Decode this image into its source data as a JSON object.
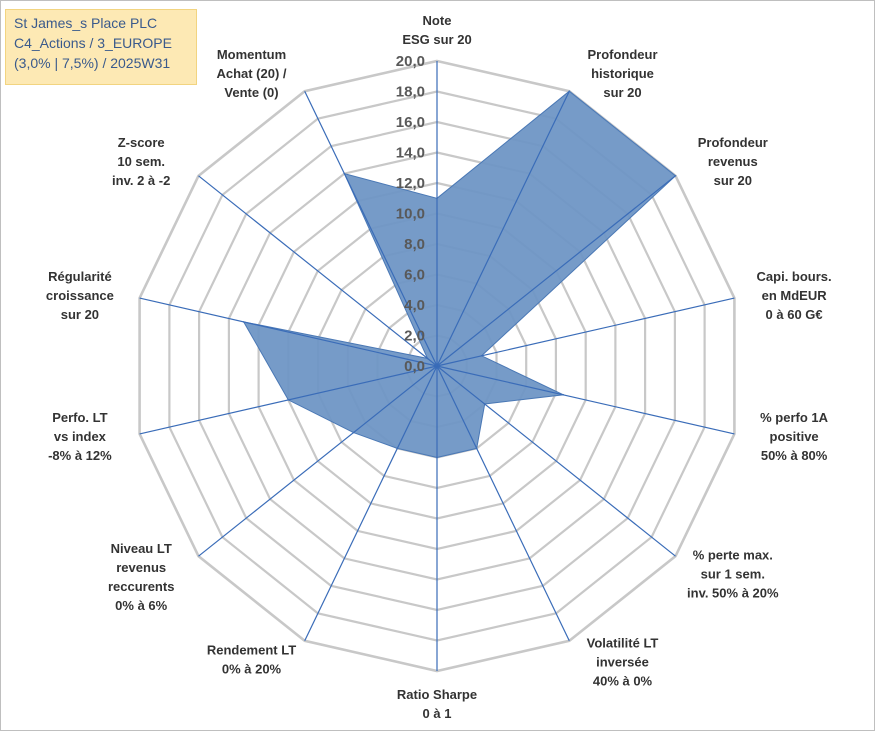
{
  "title": {
    "lines": [
      "St James_s Place PLC",
      "C4_Actions / 3_EUROPE",
      "(3,0% | 7,5%) / 2025W31"
    ]
  },
  "colors": {
    "fill": "#6f96c5",
    "stroke": "#4a78b5",
    "spoke": "#3a6cb8",
    "grid": "#c8c8c8",
    "title_bg": "#fde9b4",
    "title_text": "#3a5a8c"
  },
  "chart_data": {
    "type": "radar",
    "title": "",
    "rmax": 20,
    "tick_labels": [
      "0,0",
      "2,0",
      "4,0",
      "6,0",
      "8,0",
      "10,0",
      "12,0",
      "14,0",
      "16,0",
      "18,0",
      "20,0"
    ],
    "grid": true,
    "categories": [
      [
        "Note",
        "ESG sur 20"
      ],
      [
        "Profondeur",
        "historique",
        "sur 20"
      ],
      [
        "Profondeur",
        "revenus",
        "sur 20"
      ],
      [
        "Capi. bours.",
        "en MdEUR",
        "0 à 60 G€"
      ],
      [
        "% perfo 1A",
        "positive",
        "50% à 80%"
      ],
      [
        "% perte max.",
        "sur 1 sem.",
        "inv. 50% à 20%"
      ],
      [
        "Volatilité LT",
        "inversée",
        "40% à 0%"
      ],
      [
        "Ratio Sharpe",
        "0 à 1"
      ],
      [
        "Rendement LT",
        "0% à 20%"
      ],
      [
        "Niveau LT",
        "revenus",
        "reccurents",
        "0% à 6%"
      ],
      [
        "Perfo. LT",
        "vs index",
        "-8% à 12%"
      ],
      [
        "Régularité",
        "croissance",
        "sur 20"
      ],
      [
        "Z-score",
        "10 sem.",
        "inv. 2 à -2"
      ],
      [
        "Momentum",
        "Achat (20) /",
        "Vente (0)"
      ]
    ],
    "series": [
      {
        "values": [
          11.0,
          20.0,
          20.0,
          3.0,
          8.5,
          4.0,
          6.0,
          6.0,
          6.0,
          7.0,
          10.0,
          13.0,
          0.8,
          14.0
        ]
      }
    ]
  }
}
